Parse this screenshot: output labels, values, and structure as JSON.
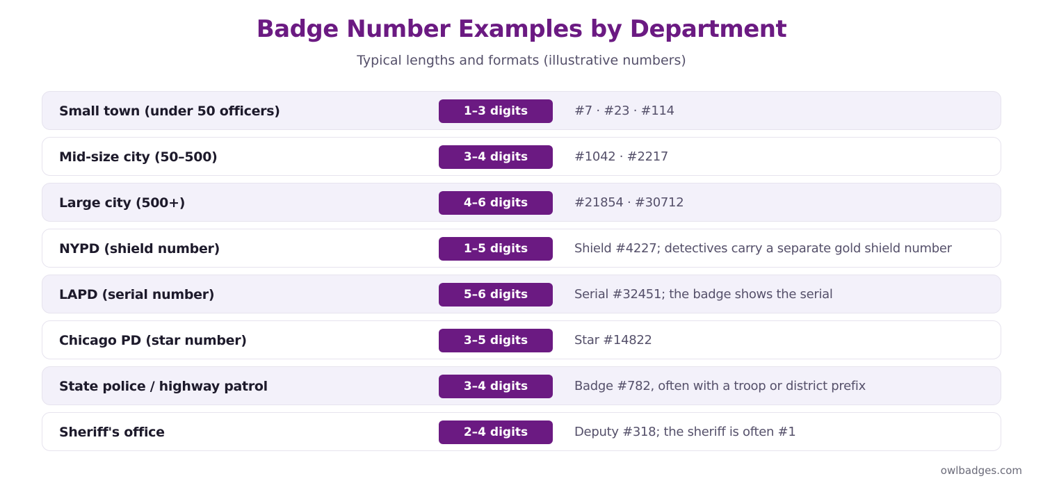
{
  "header": {
    "title": "Badge Number Examples by Department",
    "subtitle": "Typical lengths and formats (illustrative numbers)"
  },
  "rows": [
    {
      "department": "Small town (under 50 officers)",
      "length": "1–3 digits",
      "example": "#7 · #23 · #114"
    },
    {
      "department": "Mid-size city (50–500)",
      "length": "3–4 digits",
      "example": "#1042 · #2217"
    },
    {
      "department": "Large city (500+)",
      "length": "4–6 digits",
      "example": "#21854 · #30712"
    },
    {
      "department": "NYPD (shield number)",
      "length": "1–5 digits",
      "example": "Shield #4227; detectives carry a separate gold shield number"
    },
    {
      "department": "LAPD (serial number)",
      "length": "5–6 digits",
      "example": "Serial #32451; the badge shows the serial"
    },
    {
      "department": "Chicago PD (star number)",
      "length": "3–5 digits",
      "example": "Star #14822"
    },
    {
      "department": "State police / highway patrol",
      "length": "3–4 digits",
      "example": "Badge #782, often with a troop or district prefix"
    },
    {
      "department": "Sheriff's office",
      "length": "2–4 digits",
      "example": "Deputy #318; the sheriff is often #1"
    }
  ],
  "footer": {
    "site": "owlbadges.com"
  },
  "colors": {
    "accent": "#6b1a82",
    "row_shaded": "#f3f1fa",
    "row_plain": "#ffffff",
    "text_dark": "#1d1a2b",
    "text_muted": "#55506a"
  }
}
